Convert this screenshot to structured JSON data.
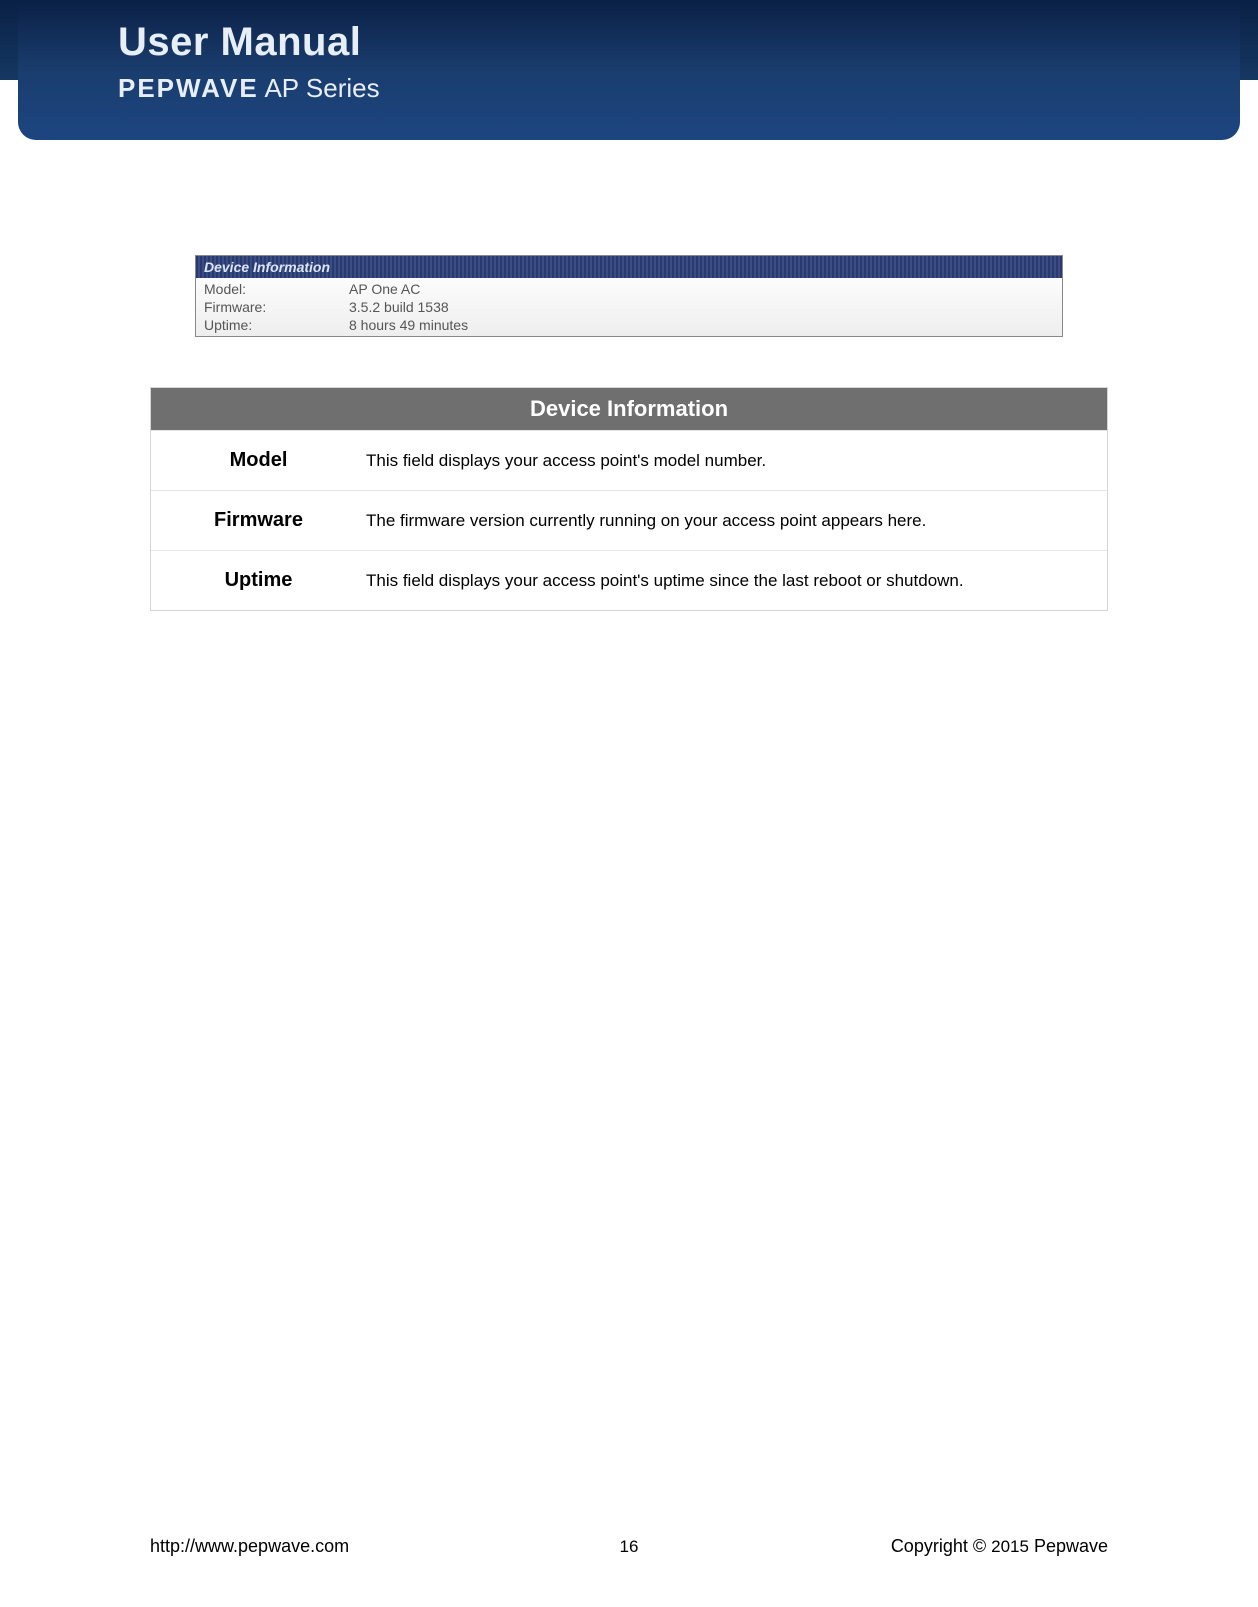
{
  "header": {
    "title": "User Manual",
    "brand_bold": "PEPWAVE",
    "brand_light": " AP Series"
  },
  "screenshot": {
    "panel_title": "Device Information",
    "rows": [
      {
        "label": "Model:",
        "value": "AP One AC"
      },
      {
        "label": "Firmware:",
        "value": "3.5.2 build 1538"
      },
      {
        "label": "Uptime:",
        "value": "8 hours 49 minutes"
      }
    ]
  },
  "doc_table": {
    "title": "Device Information",
    "rows": [
      {
        "name": "Model",
        "desc": "This field displays your access point's model number."
      },
      {
        "name": "Firmware",
        "desc": "The firmware version currently running on your access point appears here."
      },
      {
        "name": "Uptime",
        "desc": "This field displays your access point's uptime since the last reboot or shutdown."
      }
    ]
  },
  "footer": {
    "url": "http://www.pepwave.com",
    "page": "16",
    "copyright_prefix": "Copyright  ©  ",
    "year": "2015",
    "copyright_suffix": "  Pepwave"
  }
}
